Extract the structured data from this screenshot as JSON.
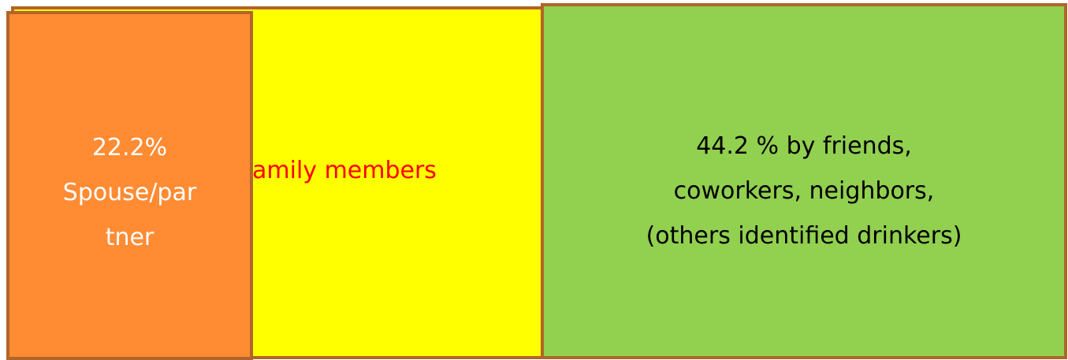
{
  "boxes": {
    "family": {
      "lines": [
        "amily members"
      ]
    },
    "spouse": {
      "lines": [
        "22.2%",
        "Spouse/par",
        "tner"
      ]
    },
    "friends": {
      "lines": [
        "44.2 % by friends,",
        "coworkers, neighbors,",
        "(others identified drinkers)"
      ]
    }
  }
}
